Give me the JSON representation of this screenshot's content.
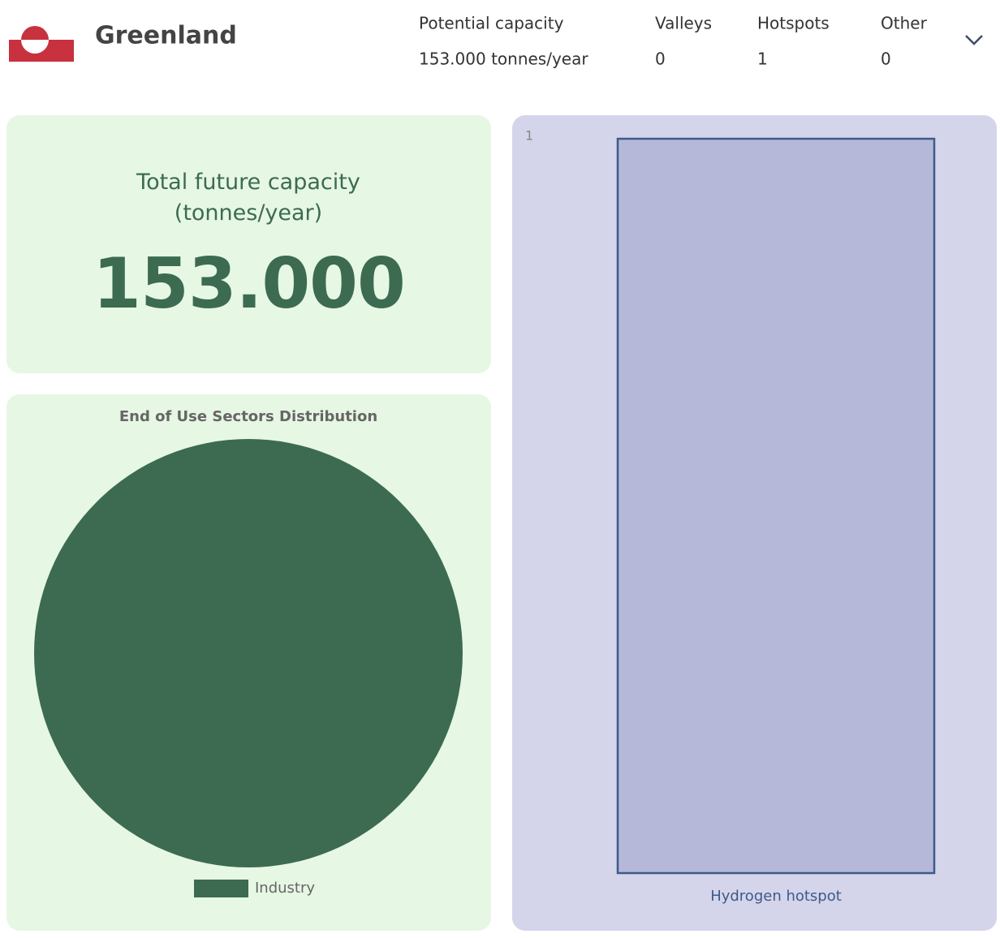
{
  "header": {
    "country": "Greenland",
    "stats": [
      {
        "label": "Potential capacity",
        "value": "153.000 tonnes/year"
      },
      {
        "label": "Valleys",
        "value": "0"
      },
      {
        "label": "Hotspots",
        "value": "1"
      },
      {
        "label": "Other",
        "value": "0"
      }
    ]
  },
  "capacity_card": {
    "title": "Total future capacity (tonnes/year)",
    "value": "153.000"
  },
  "chart_data": [
    {
      "type": "pie",
      "title": "End of Use Sectors Distribution",
      "categories": [
        "Industry"
      ],
      "values": [
        100
      ],
      "colors": [
        "#3c6b52"
      ],
      "legend": "bottom"
    },
    {
      "type": "bar",
      "categories": [
        "Hydrogen hotspot"
      ],
      "values": [
        1
      ],
      "ylim": [
        0,
        1
      ],
      "yticks": [
        1
      ],
      "color": "#b5b8d8",
      "edge_color": "#3e5a8a"
    }
  ]
}
